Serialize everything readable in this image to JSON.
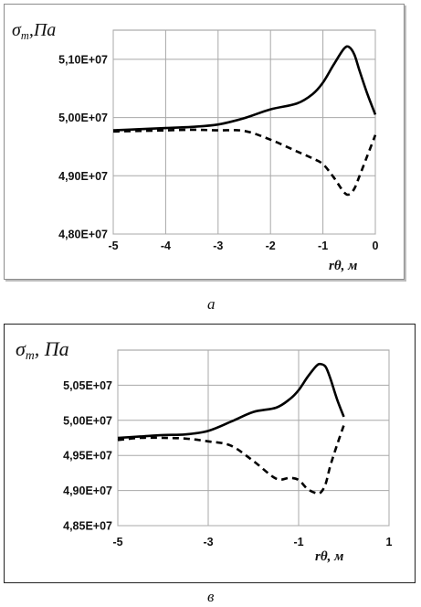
{
  "chart_data": [
    {
      "type": "line",
      "panel_label": "а",
      "title": "",
      "ylabel": "σ_т, Па",
      "ylabel_symbol": "σ",
      "ylabel_sub": "т",
      "ylabel_unit": ",Па",
      "xlabel": "rθ, м",
      "xlabel_main": "rθ",
      "xlabel_unit": ", м",
      "xlim": [
        -5,
        0
      ],
      "ylim": [
        48000000,
        51500000
      ],
      "x_ticks": [
        -5,
        -4,
        -3,
        -2,
        -1,
        0
      ],
      "x_tick_labels": [
        "-5",
        "-4",
        "-3",
        "-2",
        "-1",
        "0"
      ],
      "y_ticks": [
        48000000,
        49000000,
        50000000,
        51000000
      ],
      "y_tick_labels": [
        "4,80E+07",
        "4,90E+07",
        "5,00E+07",
        "5,10E+07"
      ],
      "grid": true,
      "series": [
        {
          "style": "solid",
          "x": [
            -5,
            -4.5,
            -4,
            -3.5,
            -3,
            -2.5,
            -2,
            -1.5,
            -1.2,
            -1,
            -0.8,
            -0.6,
            -0.5,
            -0.4,
            -0.3,
            -0.15,
            0
          ],
          "y": [
            49780000,
            49800000,
            49820000,
            49840000,
            49880000,
            49990000,
            50140000,
            50240000,
            50400000,
            50600000,
            50900000,
            51180000,
            51210000,
            51080000,
            50800000,
            50400000,
            50050000
          ]
        },
        {
          "style": "dashed",
          "x": [
            -5,
            -4.5,
            -4,
            -3.5,
            -3,
            -2.5,
            -2,
            -1.5,
            -1.2,
            -1,
            -0.8,
            -0.6,
            -0.5,
            -0.4,
            -0.3,
            -0.15,
            0
          ],
          "y": [
            49760000,
            49770000,
            49780000,
            49790000,
            49780000,
            49770000,
            49620000,
            49420000,
            49300000,
            49200000,
            48980000,
            48720000,
            48680000,
            48780000,
            49000000,
            49350000,
            49700000
          ]
        }
      ]
    },
    {
      "type": "line",
      "panel_label": "в",
      "title": "",
      "ylabel": "σ_т, Па",
      "ylabel_symbol": "σ",
      "ylabel_sub": "т",
      "ylabel_unit": ", Па",
      "xlabel": "rθ, м",
      "xlabel_main": "rθ",
      "xlabel_unit": ", м",
      "xlim": [
        -5,
        1
      ],
      "ylim": [
        48500000,
        51000000
      ],
      "x_ticks": [
        -5,
        -3,
        -1,
        1
      ],
      "x_tick_labels": [
        "-5",
        "-3",
        "-1",
        "1"
      ],
      "y_ticks": [
        48500000,
        49000000,
        49500000,
        50000000,
        50500000
      ],
      "y_tick_labels": [
        "4,85E+07",
        "4,90E+07",
        "4,95E+07",
        "5,00E+07",
        "5,05E+07"
      ],
      "grid": true,
      "series": [
        {
          "style": "solid",
          "x": [
            -5,
            -4.5,
            -4,
            -3.5,
            -3,
            -2.5,
            -2,
            -1.5,
            -1.2,
            -1,
            -0.8,
            -0.6,
            -0.5,
            -0.4,
            -0.3,
            -0.15,
            0
          ],
          "y": [
            49750000,
            49770000,
            49790000,
            49800000,
            49850000,
            49980000,
            50120000,
            50180000,
            50300000,
            50430000,
            50620000,
            50780000,
            50800000,
            50760000,
            50600000,
            50300000,
            50050000
          ]
        },
        {
          "style": "dashed",
          "x": [
            -5,
            -4.5,
            -4,
            -3.5,
            -3,
            -2.5,
            -2,
            -1.5,
            -1.2,
            -1,
            -0.8,
            -0.6,
            -0.5,
            -0.4,
            -0.3,
            -0.15,
            0
          ],
          "y": [
            49720000,
            49750000,
            49750000,
            49740000,
            49700000,
            49640000,
            49420000,
            49170000,
            49180000,
            49150000,
            49020000,
            48960000,
            48980000,
            49100000,
            49350000,
            49650000,
            49930000
          ]
        }
      ]
    }
  ]
}
